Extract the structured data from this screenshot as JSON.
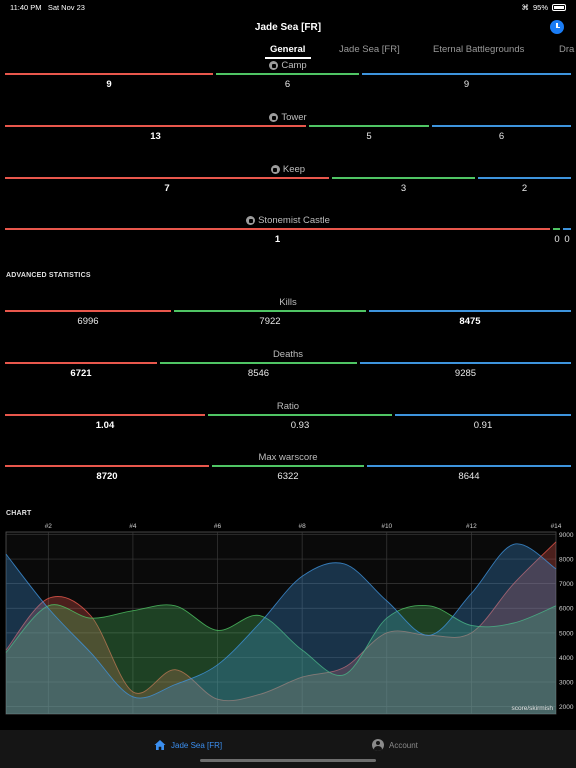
{
  "status": {
    "time": "11:40 PM",
    "date": "Sat Nov 23",
    "battery": "95%"
  },
  "header": {
    "title": "Jade Sea [FR]"
  },
  "tabs": [
    {
      "label": "General",
      "active": true
    },
    {
      "label": "Jade Sea [FR]",
      "active": false
    },
    {
      "label": "Eternal Battlegrounds",
      "active": false
    },
    {
      "label": "Dra",
      "active": false
    }
  ],
  "objectives": [
    {
      "label": "Camp",
      "icon": "camp-icon",
      "values": [
        "9",
        "6",
        "9"
      ]
    },
    {
      "label": "Tower",
      "icon": "tower-icon",
      "values": [
        "13",
        "5",
        "6"
      ]
    },
    {
      "label": "Keep",
      "icon": "keep-icon",
      "values": [
        "7",
        "3",
        "2"
      ]
    },
    {
      "label": "Stonemist Castle",
      "icon": "castle-icon",
      "values": [
        "1",
        "0",
        "0"
      ]
    }
  ],
  "advanced": {
    "header": "ADVANCED STATISTICS",
    "items": [
      {
        "label": "Kills",
        "values": [
          "6996",
          "7922",
          "8475"
        ]
      },
      {
        "label": "Deaths",
        "values": [
          "6721",
          "8546",
          "9285"
        ]
      },
      {
        "label": "Ratio",
        "values": [
          "1.04",
          "0.93",
          "0.91"
        ]
      },
      {
        "label": "Max warscore",
        "values": [
          "8720",
          "6322",
          "8644"
        ]
      }
    ]
  },
  "chart": {
    "header": "CHART",
    "unit_label": "score/skirmish"
  },
  "chart_data": {
    "type": "area",
    "x": [
      1,
      2,
      3,
      4,
      5,
      6,
      7,
      8,
      9,
      10,
      11,
      12,
      13,
      14
    ],
    "xticks": [
      "#2",
      "#4",
      "#6",
      "#8",
      "#10",
      "#12",
      "#14"
    ],
    "yticks": [
      "2000",
      "3000",
      "4000",
      "5000",
      "6000",
      "7000",
      "8000",
      "9000"
    ],
    "ylim": [
      1700,
      9100
    ],
    "grid": true,
    "colors": {
      "red": "#e8574c",
      "green": "#4fc564",
      "blue": "#3e94dd"
    },
    "series": [
      {
        "color": "red",
        "values": [
          4300,
          6400,
          5700,
          2600,
          3500,
          2300,
          2500,
          3200,
          3600,
          5000,
          4900,
          5000,
          7000,
          8700
        ]
      },
      {
        "color": "green",
        "values": [
          4200,
          6100,
          5600,
          5900,
          6100,
          5100,
          5700,
          4300,
          3300,
          5600,
          6100,
          5300,
          5400,
          6100
        ]
      },
      {
        "color": "blue",
        "values": [
          8200,
          6000,
          4200,
          2400,
          2900,
          3700,
          5400,
          7300,
          7800,
          6300,
          4900,
          6600,
          8600,
          7600
        ]
      }
    ]
  },
  "bottom_tabs": [
    {
      "label": "Jade Sea [FR]",
      "active": true
    },
    {
      "label": "Account",
      "active": false
    }
  ]
}
